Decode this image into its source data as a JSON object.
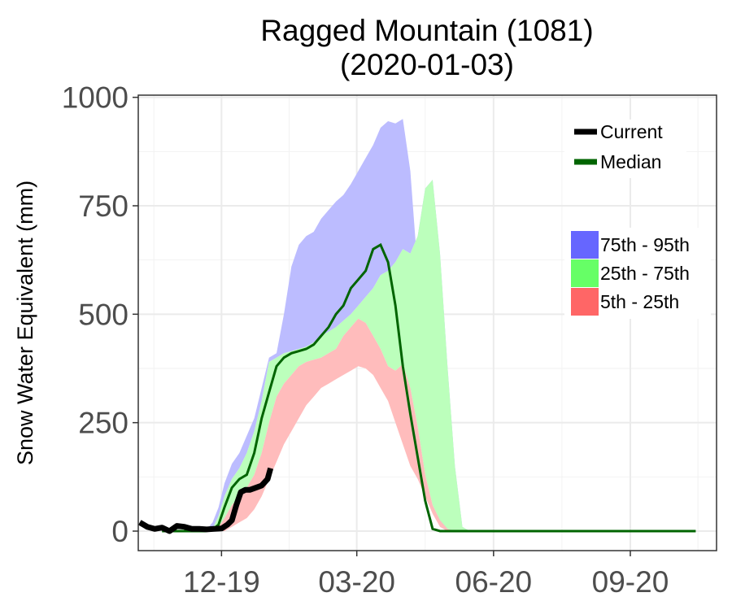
{
  "chart_data": {
    "type": "area",
    "title": "Ragged Mountain (1081)",
    "subtitle": "(2020-01-03)",
    "xlabel": "",
    "ylabel": "Snow Water Equivalent (mm)",
    "ylim": [
      -45,
      1005
    ],
    "yticks": [
      0,
      250,
      500,
      750,
      1000
    ],
    "xlim": [
      "2019-10-06",
      "2020-10-29"
    ],
    "xticks": [
      {
        "date": "2019-12-01",
        "label": "12-19"
      },
      {
        "date": "2020-03-01",
        "label": "03-20"
      },
      {
        "date": "2020-06-01",
        "label": "06-20"
      },
      {
        "date": "2020-09-01",
        "label": "09-20"
      }
    ],
    "grid": true,
    "legend_lines": {
      "position": "top-right",
      "entries": [
        {
          "label": "Current",
          "color": "#000000"
        },
        {
          "label": "Median",
          "color": "#006400"
        }
      ]
    },
    "legend_bands": {
      "position": "right",
      "entries": [
        {
          "label": "75th - 95th",
          "color": "#6666ff"
        },
        {
          "label": "25th - 75th",
          "color": "#66ff66"
        },
        {
          "label": "5th - 25th",
          "color": "#ff6666"
        }
      ]
    },
    "band_colors": {
      "p75_95": "#bcbcff",
      "p25_75": "#bcffbc",
      "p5_25": "#ffbcbc"
    },
    "x": [
      "2019-10-22",
      "2019-11-01",
      "2019-11-10",
      "2019-11-20",
      "2019-11-25",
      "2019-11-29",
      "2019-12-03",
      "2019-12-08",
      "2019-12-13",
      "2019-12-18",
      "2019-12-23",
      "2019-12-28",
      "2020-01-02",
      "2020-01-07",
      "2020-01-12",
      "2020-01-17",
      "2020-01-22",
      "2020-01-27",
      "2020-02-01",
      "2020-02-06",
      "2020-02-11",
      "2020-02-16",
      "2020-02-21",
      "2020-02-26",
      "2020-03-02",
      "2020-03-07",
      "2020-03-12",
      "2020-03-17",
      "2020-03-22",
      "2020-03-27",
      "2020-04-01",
      "2020-04-06",
      "2020-04-11",
      "2020-04-16",
      "2020-04-21",
      "2020-04-26",
      "2020-05-01",
      "2020-05-06",
      "2020-05-11",
      "2020-05-16",
      "2020-05-21",
      "2020-05-26",
      "2020-05-31",
      "2020-06-05",
      "2020-06-15",
      "2020-07-15",
      "2020-08-15",
      "2020-09-15",
      "2020-10-15"
    ],
    "p95": [
      0,
      0,
      0,
      0,
      20,
      55,
      110,
      155,
      180,
      220,
      260,
      330,
      400,
      410,
      500,
      610,
      660,
      680,
      690,
      720,
      740,
      760,
      775,
      800,
      830,
      860,
      890,
      930,
      945,
      940,
      950,
      830,
      600,
      330,
      100,
      10,
      0,
      0,
      0,
      0,
      0,
      0,
      0,
      0,
      0,
      0,
      0,
      0,
      0
    ],
    "p75": [
      0,
      0,
      0,
      0,
      5,
      35,
      80,
      120,
      145,
      180,
      230,
      300,
      390,
      400,
      410,
      415,
      420,
      425,
      435,
      450,
      460,
      470,
      485,
      500,
      520,
      540,
      560,
      590,
      600,
      620,
      650,
      640,
      680,
      790,
      810,
      640,
      380,
      150,
      10,
      0,
      0,
      0,
      0,
      0,
      0,
      0,
      0,
      0,
      0
    ],
    "p25": [
      0,
      0,
      0,
      0,
      0,
      10,
      30,
      60,
      80,
      100,
      130,
      180,
      250,
      310,
      340,
      360,
      380,
      390,
      395,
      400,
      410,
      420,
      450,
      470,
      490,
      480,
      450,
      420,
      380,
      370,
      385,
      330,
      240,
      130,
      60,
      25,
      5,
      0,
      0,
      0,
      0,
      0,
      0,
      0,
      0,
      0,
      0,
      0,
      0
    ],
    "p5": [
      0,
      0,
      0,
      0,
      0,
      0,
      0,
      10,
      20,
      30,
      50,
      80,
      120,
      160,
      200,
      230,
      260,
      290,
      310,
      330,
      340,
      350,
      360,
      370,
      380,
      375,
      360,
      330,
      300,
      250,
      200,
      150,
      120,
      80,
      40,
      10,
      0,
      0,
      0,
      0,
      0,
      0,
      0,
      0,
      0,
      0,
      0,
      0,
      0
    ],
    "median": [
      0,
      0,
      0,
      0,
      3,
      15,
      55,
      100,
      120,
      130,
      180,
      260,
      320,
      380,
      400,
      410,
      415,
      420,
      430,
      450,
      470,
      500,
      520,
      560,
      580,
      600,
      650,
      660,
      620,
      520,
      380,
      270,
      170,
      70,
      5,
      0,
      0,
      0,
      0,
      0,
      0,
      0,
      0,
      0,
      0,
      0,
      0,
      0,
      0
    ],
    "current": {
      "x": [
        "2019-10-07",
        "2019-10-12",
        "2019-10-17",
        "2019-10-22",
        "2019-10-27",
        "2019-11-01",
        "2019-11-06",
        "2019-11-11",
        "2019-11-16",
        "2019-11-21",
        "2019-11-26",
        "2019-12-01",
        "2019-12-05",
        "2019-12-08",
        "2019-12-11",
        "2019-12-14",
        "2019-12-17",
        "2019-12-20",
        "2019-12-24",
        "2019-12-28",
        "2020-01-01",
        "2020-01-03"
      ],
      "values": [
        20,
        10,
        5,
        8,
        0,
        12,
        10,
        5,
        5,
        4,
        5,
        6,
        15,
        25,
        60,
        90,
        95,
        95,
        100,
        105,
        120,
        145
      ]
    }
  }
}
